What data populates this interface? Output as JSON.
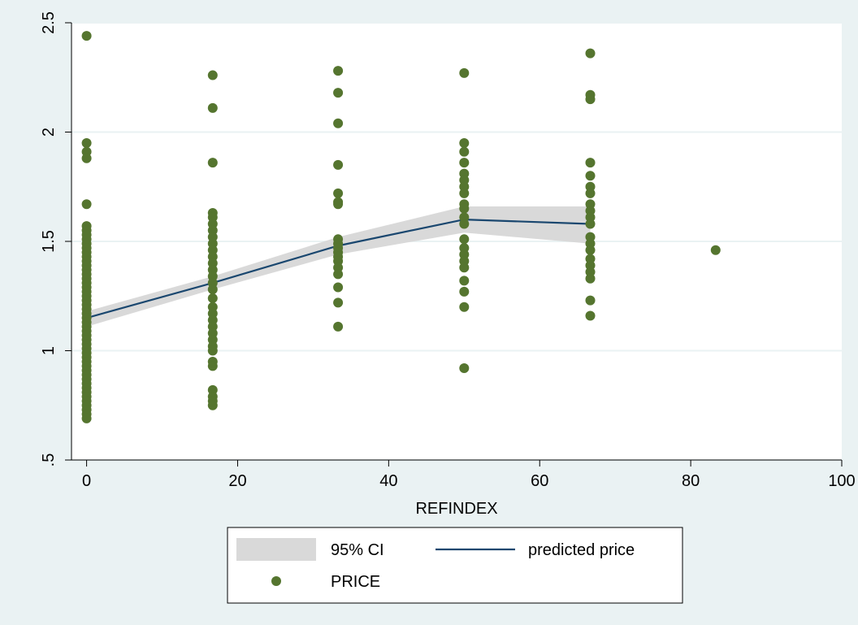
{
  "chart_data": {
    "type": "scatter",
    "xlabel": "REFINDEX",
    "ylabel": "",
    "xlim": [
      -2,
      100
    ],
    "ylim": [
      0.5,
      2.5
    ],
    "x_ticks": [
      0,
      20,
      40,
      60,
      80,
      100
    ],
    "x_tick_labels": [
      "0",
      "20",
      "40",
      "60",
      "80",
      "100"
    ],
    "y_ticks": [
      0.5,
      1,
      1.5,
      2,
      2.5
    ],
    "y_tick_labels": [
      ".5",
      "1",
      "1.5",
      "2",
      "2.5"
    ],
    "grid": "horizontal",
    "legend_position": "bottom",
    "colors": {
      "outer_background": "#eaf2f3",
      "plot_background": "#ffffff",
      "grid": "#eaf2f3",
      "ci_band": "#d9d9d9",
      "line": "#1a476f",
      "points": "#55752f"
    },
    "legend": [
      {
        "label": "95% CI",
        "kind": "band"
      },
      {
        "label": "predicted price",
        "kind": "line"
      },
      {
        "label": "PRICE",
        "kind": "point"
      }
    ],
    "series": [
      {
        "name": "95% CI",
        "kind": "band",
        "x": [
          0,
          16.7,
          33.3,
          50,
          66.7
        ],
        "lower": [
          1.11,
          1.28,
          1.44,
          1.54,
          1.49
        ],
        "upper": [
          1.18,
          1.34,
          1.52,
          1.66,
          1.66
        ]
      },
      {
        "name": "predicted price",
        "kind": "line",
        "x": [
          0,
          16.7,
          33.3,
          50,
          66.7
        ],
        "y": [
          1.15,
          1.31,
          1.48,
          1.6,
          1.58
        ]
      },
      {
        "name": "PRICE",
        "kind": "scatter",
        "points": [
          {
            "x": 0,
            "y": 2.44
          },
          {
            "x": 0,
            "y": 1.95
          },
          {
            "x": 0,
            "y": 1.91
          },
          {
            "x": 0,
            "y": 1.88
          },
          {
            "x": 0,
            "y": 1.67
          },
          {
            "x": 0,
            "y": 1.57
          },
          {
            "x": 0,
            "y": 1.55
          },
          {
            "x": 0,
            "y": 1.53
          },
          {
            "x": 0,
            "y": 1.51
          },
          {
            "x": 0,
            "y": 1.49
          },
          {
            "x": 0,
            "y": 1.47
          },
          {
            "x": 0,
            "y": 1.45
          },
          {
            "x": 0,
            "y": 1.43
          },
          {
            "x": 0,
            "y": 1.41
          },
          {
            "x": 0,
            "y": 1.39
          },
          {
            "x": 0,
            "y": 1.37
          },
          {
            "x": 0,
            "y": 1.35
          },
          {
            "x": 0,
            "y": 1.33
          },
          {
            "x": 0,
            "y": 1.31
          },
          {
            "x": 0,
            "y": 1.29
          },
          {
            "x": 0,
            "y": 1.27
          },
          {
            "x": 0,
            "y": 1.25
          },
          {
            "x": 0,
            "y": 1.23
          },
          {
            "x": 0,
            "y": 1.21
          },
          {
            "x": 0,
            "y": 1.19
          },
          {
            "x": 0,
            "y": 1.17
          },
          {
            "x": 0,
            "y": 1.15
          },
          {
            "x": 0,
            "y": 1.13
          },
          {
            "x": 0,
            "y": 1.11
          },
          {
            "x": 0,
            "y": 1.09
          },
          {
            "x": 0,
            "y": 1.07
          },
          {
            "x": 0,
            "y": 1.05
          },
          {
            "x": 0,
            "y": 1.03
          },
          {
            "x": 0,
            "y": 1.01
          },
          {
            "x": 0,
            "y": 0.99
          },
          {
            "x": 0,
            "y": 0.97
          },
          {
            "x": 0,
            "y": 0.95
          },
          {
            "x": 0,
            "y": 0.93
          },
          {
            "x": 0,
            "y": 0.91
          },
          {
            "x": 0,
            "y": 0.89
          },
          {
            "x": 0,
            "y": 0.87
          },
          {
            "x": 0,
            "y": 0.85
          },
          {
            "x": 0,
            "y": 0.83
          },
          {
            "x": 0,
            "y": 0.81
          },
          {
            "x": 0,
            "y": 0.79
          },
          {
            "x": 0,
            "y": 0.77
          },
          {
            "x": 0,
            "y": 0.75
          },
          {
            "x": 0,
            "y": 0.73
          },
          {
            "x": 0,
            "y": 0.71
          },
          {
            "x": 0,
            "y": 0.69
          },
          {
            "x": 16.7,
            "y": 2.26
          },
          {
            "x": 16.7,
            "y": 2.11
          },
          {
            "x": 16.7,
            "y": 1.86
          },
          {
            "x": 16.7,
            "y": 1.63
          },
          {
            "x": 16.7,
            "y": 1.61
          },
          {
            "x": 16.7,
            "y": 1.58
          },
          {
            "x": 16.7,
            "y": 1.55
          },
          {
            "x": 16.7,
            "y": 1.52
          },
          {
            "x": 16.7,
            "y": 1.49
          },
          {
            "x": 16.7,
            "y": 1.46
          },
          {
            "x": 16.7,
            "y": 1.43
          },
          {
            "x": 16.7,
            "y": 1.4
          },
          {
            "x": 16.7,
            "y": 1.37
          },
          {
            "x": 16.7,
            "y": 1.34
          },
          {
            "x": 16.7,
            "y": 1.31
          },
          {
            "x": 16.7,
            "y": 1.28
          },
          {
            "x": 16.7,
            "y": 1.24
          },
          {
            "x": 16.7,
            "y": 1.2
          },
          {
            "x": 16.7,
            "y": 1.17
          },
          {
            "x": 16.7,
            "y": 1.14
          },
          {
            "x": 16.7,
            "y": 1.11
          },
          {
            "x": 16.7,
            "y": 1.08
          },
          {
            "x": 16.7,
            "y": 1.05
          },
          {
            "x": 16.7,
            "y": 1.02
          },
          {
            "x": 16.7,
            "y": 1.0
          },
          {
            "x": 16.7,
            "y": 0.95
          },
          {
            "x": 16.7,
            "y": 0.93
          },
          {
            "x": 16.7,
            "y": 0.82
          },
          {
            "x": 16.7,
            "y": 0.79
          },
          {
            "x": 16.7,
            "y": 0.77
          },
          {
            "x": 16.7,
            "y": 0.75
          },
          {
            "x": 33.3,
            "y": 2.28
          },
          {
            "x": 33.3,
            "y": 2.18
          },
          {
            "x": 33.3,
            "y": 2.04
          },
          {
            "x": 33.3,
            "y": 1.85
          },
          {
            "x": 33.3,
            "y": 1.72
          },
          {
            "x": 33.3,
            "y": 1.68
          },
          {
            "x": 33.3,
            "y": 1.67
          },
          {
            "x": 33.3,
            "y": 1.51
          },
          {
            "x": 33.3,
            "y": 1.49
          },
          {
            "x": 33.3,
            "y": 1.47
          },
          {
            "x": 33.3,
            "y": 1.45
          },
          {
            "x": 33.3,
            "y": 1.43
          },
          {
            "x": 33.3,
            "y": 1.41
          },
          {
            "x": 33.3,
            "y": 1.38
          },
          {
            "x": 33.3,
            "y": 1.35
          },
          {
            "x": 33.3,
            "y": 1.29
          },
          {
            "x": 33.3,
            "y": 1.22
          },
          {
            "x": 33.3,
            "y": 1.11
          },
          {
            "x": 50,
            "y": 2.27
          },
          {
            "x": 50,
            "y": 1.95
          },
          {
            "x": 50,
            "y": 1.91
          },
          {
            "x": 50,
            "y": 1.86
          },
          {
            "x": 50,
            "y": 1.81
          },
          {
            "x": 50,
            "y": 1.78
          },
          {
            "x": 50,
            "y": 1.75
          },
          {
            "x": 50,
            "y": 1.72
          },
          {
            "x": 50,
            "y": 1.67
          },
          {
            "x": 50,
            "y": 1.65
          },
          {
            "x": 50,
            "y": 1.61
          },
          {
            "x": 50,
            "y": 1.58
          },
          {
            "x": 50,
            "y": 1.51
          },
          {
            "x": 50,
            "y": 1.47
          },
          {
            "x": 50,
            "y": 1.44
          },
          {
            "x": 50,
            "y": 1.41
          },
          {
            "x": 50,
            "y": 1.38
          },
          {
            "x": 50,
            "y": 1.32
          },
          {
            "x": 50,
            "y": 1.27
          },
          {
            "x": 50,
            "y": 1.2
          },
          {
            "x": 50,
            "y": 0.92
          },
          {
            "x": 66.7,
            "y": 2.36
          },
          {
            "x": 66.7,
            "y": 2.17
          },
          {
            "x": 66.7,
            "y": 2.15
          },
          {
            "x": 66.7,
            "y": 1.86
          },
          {
            "x": 66.7,
            "y": 1.8
          },
          {
            "x": 66.7,
            "y": 1.75
          },
          {
            "x": 66.7,
            "y": 1.72
          },
          {
            "x": 66.7,
            "y": 1.67
          },
          {
            "x": 66.7,
            "y": 1.64
          },
          {
            "x": 66.7,
            "y": 1.61
          },
          {
            "x": 66.7,
            "y": 1.58
          },
          {
            "x": 66.7,
            "y": 1.52
          },
          {
            "x": 66.7,
            "y": 1.49
          },
          {
            "x": 66.7,
            "y": 1.46
          },
          {
            "x": 66.7,
            "y": 1.42
          },
          {
            "x": 66.7,
            "y": 1.39
          },
          {
            "x": 66.7,
            "y": 1.36
          },
          {
            "x": 66.7,
            "y": 1.33
          },
          {
            "x": 66.7,
            "y": 1.23
          },
          {
            "x": 66.7,
            "y": 1.16
          },
          {
            "x": 83.3,
            "y": 1.46
          }
        ]
      }
    ]
  }
}
